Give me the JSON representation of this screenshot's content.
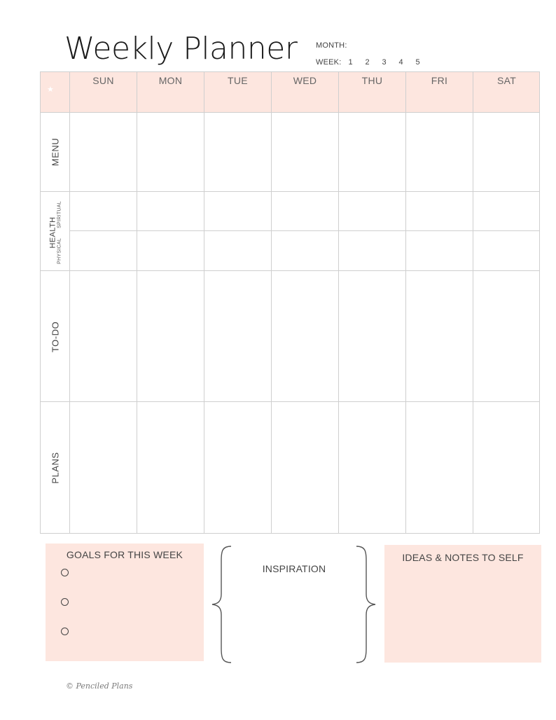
{
  "header": {
    "title": "Weekly Planner",
    "month_label": "MONTH:",
    "week_label": "WEEK:",
    "week_numbers": [
      "1",
      "2",
      "3",
      "4",
      "5"
    ]
  },
  "grid": {
    "corner_icon": "star-icon",
    "corner_glyph": "★",
    "days": [
      "SUN",
      "MON",
      "TUE",
      "WED",
      "THU",
      "FRI",
      "SAT"
    ],
    "rows": {
      "menu": "MENU",
      "health": "HEALTH",
      "health_physical": "PHYSICAL",
      "health_spiritual": "SPIRITUAL",
      "todo": "TO-DO",
      "plans": "PLANS"
    }
  },
  "goals": {
    "title": "GOALS FOR THIS WEEK",
    "bullet_icon": "circle-bullet-icon"
  },
  "inspiration": {
    "title": "INSPIRATION"
  },
  "ideas": {
    "title": "IDEAS & NOTES TO SELF"
  },
  "footer": {
    "copyright": "© Penciled Plans"
  },
  "colors": {
    "accent_pink": "#fde6df",
    "grid_line": "#cfcfcf",
    "text": "#444444"
  }
}
